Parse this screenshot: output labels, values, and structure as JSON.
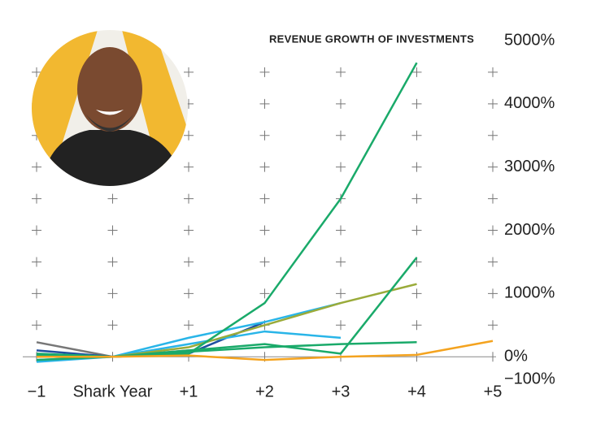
{
  "chart_data": {
    "type": "line",
    "title": "REVENUE GROWTH OF INVESTMENTS",
    "categories": [
      "−1",
      "Shark Year",
      "+1",
      "+2",
      "+3",
      "+4",
      "+5"
    ],
    "ylim": [
      -100,
      5000
    ],
    "yticks": [
      {
        "value": -100,
        "label": "−100%"
      },
      {
        "value": 0,
        "label": "0%"
      },
      {
        "value": 1000,
        "label": "1000%"
      },
      {
        "value": 2000,
        "label": "2000%"
      },
      {
        "value": 3000,
        "label": "3000%"
      },
      {
        "value": 4000,
        "label": "4000%"
      },
      {
        "value": 5000,
        "label": "5000%"
      }
    ],
    "series": [
      {
        "color": "#777777",
        "values": [
          230,
          0,
          100,
          null,
          null,
          null,
          null
        ]
      },
      {
        "color": "#1f4fa0",
        "values": [
          100,
          0,
          50,
          550,
          null,
          null,
          null
        ]
      },
      {
        "color": "#29b5e8",
        "values": [
          -80,
          0,
          300,
          550,
          850,
          null,
          null
        ]
      },
      {
        "color": "#29b5e8",
        "values": [
          -50,
          0,
          200,
          400,
          300,
          null,
          null
        ]
      },
      {
        "color": "#9aab3a",
        "values": [
          0,
          0,
          150,
          500,
          850,
          1150,
          null
        ]
      },
      {
        "color": "#1aaa6a",
        "values": [
          30,
          0,
          80,
          150,
          200,
          230,
          null
        ]
      },
      {
        "color": "#1aaa6a",
        "values": [
          50,
          0,
          100,
          200,
          50,
          1570,
          null
        ]
      },
      {
        "color": "#1aaa6a",
        "values": [
          -50,
          0,
          50,
          850,
          2500,
          4650,
          null
        ]
      },
      {
        "color": "#f4a31f",
        "values": [
          0,
          0,
          20,
          -50,
          0,
          30,
          250
        ]
      }
    ]
  }
}
